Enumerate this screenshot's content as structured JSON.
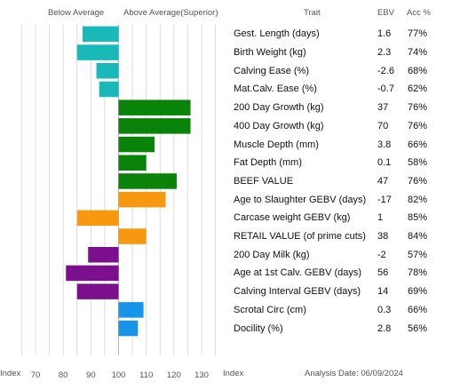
{
  "header": {
    "below": "Below Average",
    "above": "Above Average(Superior)",
    "trait": "Trait",
    "ebv": "EBV",
    "acc": "Acc %"
  },
  "footer": {
    "index_left": "Index",
    "index_right": "Index",
    "analysis_date": "Analysis Date: 06/09/2024"
  },
  "chart_data": {
    "type": "bar",
    "orientation": "horizontal",
    "baseline": 100,
    "xlim": [
      64,
      136
    ],
    "x_ticks": [
      70,
      80,
      90,
      100,
      110,
      120,
      130
    ],
    "grid": true,
    "colors": {
      "teal": "#1ab9b9",
      "green": "#0a830a",
      "orange": "#f7980f",
      "purple": "#7b0f8e",
      "blue": "#1793e8"
    },
    "rows": [
      {
        "trait": "Gest. Length (days)",
        "ebv": "1.6",
        "acc": "77%",
        "index": 87,
        "color": "teal"
      },
      {
        "trait": "Birth Weight (kg)",
        "ebv": "2.3",
        "acc": "74%",
        "index": 85,
        "color": "teal"
      },
      {
        "trait": "Calving Ease (%)",
        "ebv": "-2.6",
        "acc": "68%",
        "index": 92,
        "color": "teal"
      },
      {
        "trait": "Mat.Calv. Ease (%)",
        "ebv": "-0.7",
        "acc": "62%",
        "index": 93,
        "color": "teal"
      },
      {
        "trait": "200 Day Growth (kg)",
        "ebv": "37",
        "acc": "76%",
        "index": 126,
        "color": "green"
      },
      {
        "trait": "400 Day Growth (kg)",
        "ebv": "70",
        "acc": "76%",
        "index": 126,
        "color": "green"
      },
      {
        "trait": "Muscle Depth (mm)",
        "ebv": "3.8",
        "acc": "66%",
        "index": 113,
        "color": "green"
      },
      {
        "trait": "Fat Depth (mm)",
        "ebv": "0.1",
        "acc": "58%",
        "index": 110,
        "color": "green"
      },
      {
        "trait": "BEEF VALUE",
        "ebv": "47",
        "acc": "76%",
        "index": 121,
        "color": "green"
      },
      {
        "trait": "Age to Slaughter GEBV (days)",
        "ebv": "-17",
        "acc": "82%",
        "index": 117,
        "color": "orange"
      },
      {
        "trait": "Carcase weight GEBV (kg)",
        "ebv": "1",
        "acc": "85%",
        "index": 85,
        "color": "orange"
      },
      {
        "trait": "RETAIL VALUE (of prime cuts)",
        "ebv": "38",
        "acc": "84%",
        "index": 110,
        "color": "orange"
      },
      {
        "trait": "200 Day Milk (kg)",
        "ebv": "-2",
        "acc": "57%",
        "index": 89,
        "color": "purple"
      },
      {
        "trait": "Age at 1st Calv. GEBV (days)",
        "ebv": "56",
        "acc": "78%",
        "index": 81,
        "color": "purple"
      },
      {
        "trait": "Calving Interval GEBV (days)",
        "ebv": "14",
        "acc": "69%",
        "index": 85,
        "color": "purple"
      },
      {
        "trait": "Scrotal Circ (cm)",
        "ebv": "0.3",
        "acc": "66%",
        "index": 109,
        "color": "blue"
      },
      {
        "trait": "Docility (%)",
        "ebv": "2.8",
        "acc": "56%",
        "index": 107,
        "color": "blue"
      }
    ]
  }
}
